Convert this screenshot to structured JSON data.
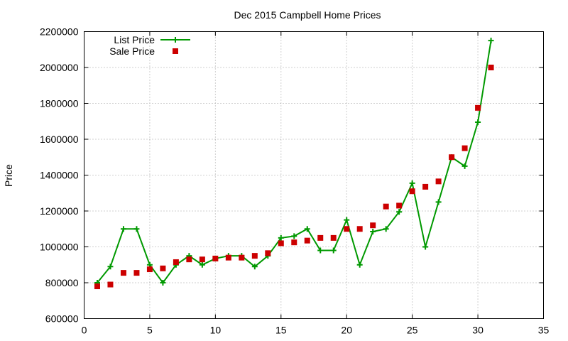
{
  "chart_data": {
    "type": "line",
    "title": "Dec 2015 Campbell Home Prices",
    "xlabel": "",
    "ylabel": "Price",
    "xlim": [
      0,
      35
    ],
    "ylim": [
      600000,
      2200000
    ],
    "x_ticks": [
      0,
      5,
      10,
      15,
      20,
      25,
      30,
      35
    ],
    "y_ticks": [
      600000,
      800000,
      1000000,
      1200000,
      1400000,
      1600000,
      1800000,
      2000000,
      2200000
    ],
    "grid": true,
    "legend_position": "top-left",
    "series": [
      {
        "name": "List Price",
        "style": "line+cross",
        "color": "#009900",
        "x": [
          1,
          2,
          3,
          4,
          5,
          6,
          7,
          8,
          9,
          10,
          11,
          12,
          13,
          14,
          15,
          16,
          17,
          18,
          19,
          20,
          21,
          22,
          23,
          24,
          25,
          26,
          27,
          28,
          29,
          30,
          31
        ],
        "y": [
          800000,
          890000,
          1100000,
          1100000,
          900000,
          800000,
          900000,
          950000,
          900000,
          935000,
          950000,
          950000,
          890000,
          950000,
          1050000,
          1060000,
          1100000,
          980000,
          980000,
          1150000,
          900000,
          1085000,
          1100000,
          1195000,
          1355000,
          1000000,
          1250000,
          1500000,
          1450000,
          1695000,
          2150000
        ]
      },
      {
        "name": "Sale Price",
        "style": "square-marker",
        "color": "#cc0000",
        "x": [
          1,
          2,
          3,
          4,
          5,
          6,
          7,
          8,
          9,
          10,
          11,
          12,
          13,
          14,
          15,
          16,
          17,
          18,
          19,
          20,
          21,
          22,
          23,
          24,
          25,
          26,
          27,
          28,
          29,
          30,
          31
        ],
        "y": [
          780000,
          790000,
          855000,
          855000,
          875000,
          880000,
          915000,
          930000,
          930000,
          935000,
          940000,
          940000,
          950000,
          965000,
          1020000,
          1025000,
          1035000,
          1050000,
          1050000,
          1100000,
          1100000,
          1120000,
          1225000,
          1230000,
          1310000,
          1335000,
          1365000,
          1500000,
          1550000,
          1775000,
          2000000
        ]
      }
    ]
  }
}
